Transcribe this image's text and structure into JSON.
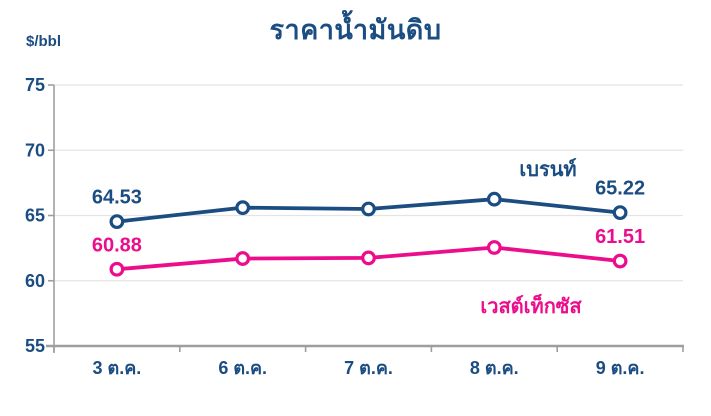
{
  "colors": {
    "brent_blue": "#1B4D82",
    "wti_pink": "#EC0D8C",
    "axis_gray": "#9E9E9E",
    "grid_gray": "#E4E4E4",
    "background": "#FFFFFF"
  },
  "chart_data": {
    "type": "line",
    "title": "ราคาน้ำมันดิบ",
    "ylabel": "$/bbl",
    "xlabel": "",
    "categories": [
      "3 ต.ค.",
      "6 ต.ค.",
      "7 ต.ค.",
      "8 ต.ค.",
      "9 ต.ค."
    ],
    "ylim": [
      55,
      75
    ],
    "yticks": [
      55,
      60,
      65,
      70,
      75
    ],
    "grid": true,
    "legend_position": "inline-annotations",
    "series": [
      {
        "name": "เบรนท์",
        "color": "#1B4D82",
        "values": [
          64.53,
          65.6,
          65.5,
          66.25,
          65.22
        ],
        "point_labels": [
          {
            "index": 0,
            "text": "64.53"
          },
          {
            "index": 4,
            "text": "65.22"
          }
        ]
      },
      {
        "name": "เวสต์เท็กซัส",
        "color": "#EC0D8C",
        "values": [
          60.88,
          61.7,
          61.75,
          62.55,
          61.51
        ],
        "point_labels": [
          {
            "index": 0,
            "text": "60.88"
          },
          {
            "index": 4,
            "text": "61.51"
          }
        ]
      }
    ]
  }
}
